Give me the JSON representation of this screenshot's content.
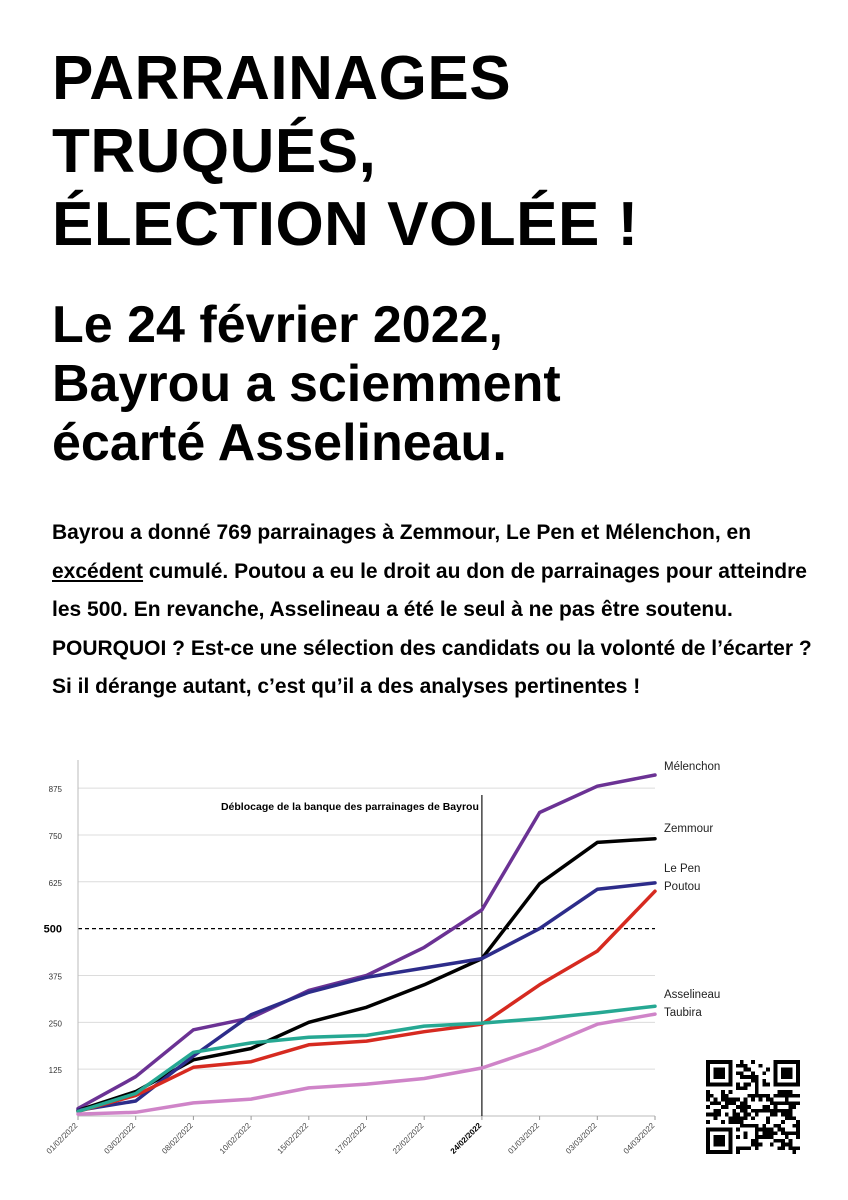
{
  "headline": {
    "line1": "PARRAINAGES",
    "line2": "TRUQUÉS,",
    "line3": "ÉLECTION VOLÉE !"
  },
  "subhead": {
    "line1": "Le 24 février 2022,",
    "line2": "Bayrou a sciemment",
    "line3": "écarté Asselineau."
  },
  "body": {
    "p1": "Bayrou a donné 769 parrainages à Zemmour, Le Pen et Mélenchon, en ",
    "underlined": "excédent",
    "p2": " cumulé. Poutou a eu le droit au don de parrainages pour atteindre les 500. En revanche, Asselineau a été le seul à ne pas être soutenu. POURQUOI ? Est-ce une sélection des candidats ou la volonté de l’écarter ? Si il dérange autant, c’est qu’il a des analyses pertinentes !"
  },
  "chart_data": {
    "type": "line",
    "x": [
      "01/02/2022",
      "03/02/2022",
      "08/02/2022",
      "10/02/2022",
      "15/02/2022",
      "17/02/2022",
      "22/02/2022",
      "24/02/2022",
      "01/03/2022",
      "03/03/2022",
      "04/03/2022"
    ],
    "x_emphasized": "24/02/2022",
    "y_ticks": [
      "125",
      "250",
      "375",
      "500",
      "625",
      "750",
      "875"
    ],
    "ylim": [
      0,
      950
    ],
    "grid": true,
    "threshold": {
      "value": 500,
      "label": "500"
    },
    "annotation": {
      "x": "24/02/2022",
      "text": "Déblocage de la banque des parrainages de Bayrou"
    },
    "series": [
      {
        "name": "Mélenchon",
        "color": "#6b3294",
        "values": [
          20,
          105,
          230,
          262,
          335,
          375,
          450,
          550,
          810,
          880,
          910
        ]
      },
      {
        "name": "Zemmour",
        "color": "#000000",
        "values": [
          15,
          65,
          150,
          180,
          250,
          290,
          350,
          420,
          620,
          730,
          740
        ]
      },
      {
        "name": "Le Pen",
        "color": "#2d2c8a",
        "values": [
          15,
          40,
          160,
          270,
          330,
          370,
          395,
          420,
          500,
          605,
          622
        ]
      },
      {
        "name": "Poutou",
        "color": "#d62a20",
        "values": [
          12,
          55,
          130,
          145,
          190,
          200,
          225,
          245,
          350,
          440,
          600
        ]
      },
      {
        "name": "Asselineau",
        "color": "#26a893",
        "values": [
          12,
          60,
          170,
          195,
          210,
          215,
          240,
          248,
          260,
          275,
          293
        ]
      },
      {
        "name": "Taubira",
        "color": "#cf84c8",
        "values": [
          5,
          10,
          35,
          45,
          75,
          85,
          100,
          128,
          180,
          245,
          272
        ]
      }
    ]
  }
}
